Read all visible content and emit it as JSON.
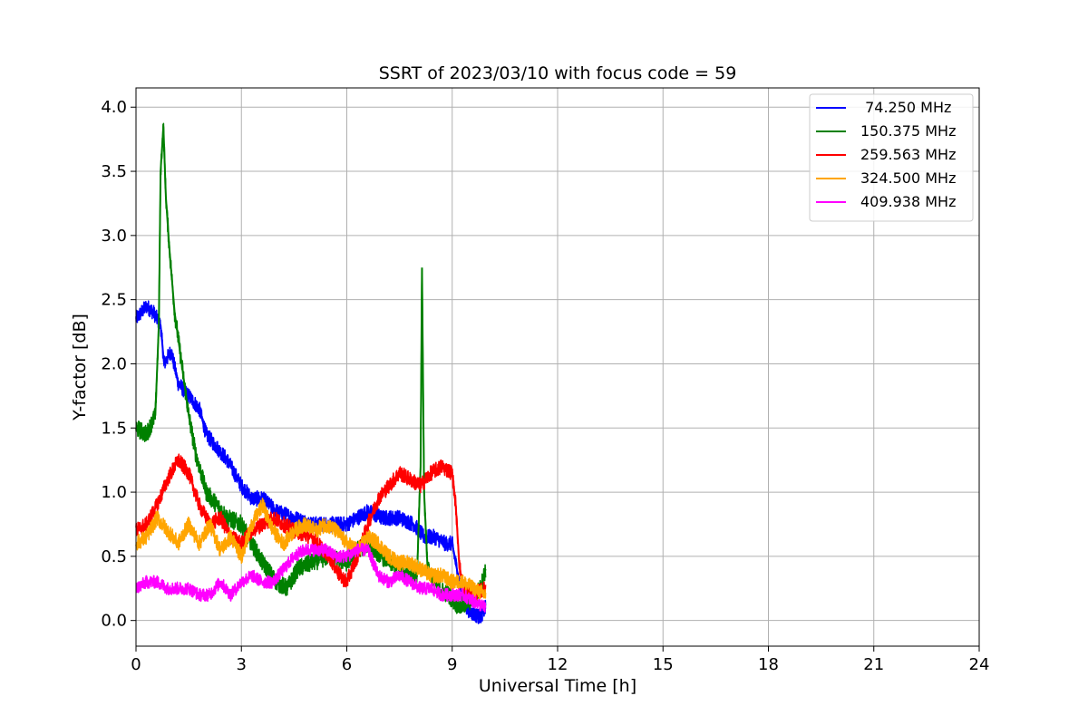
{
  "chart_data": {
    "type": "line",
    "title": "SSRT of 2023/03/10 with focus code = 59",
    "xlabel": "Universal Time [h]",
    "ylabel": "Y-factor [dB]",
    "xlim": [
      0,
      24
    ],
    "ylim": [
      -0.2,
      4.15
    ],
    "xticks": [
      "0",
      "3",
      "6",
      "9",
      "12",
      "15",
      "18",
      "21",
      "24"
    ],
    "yticks": [
      "0.0",
      "0.5",
      "1.0",
      "1.5",
      "2.0",
      "2.5",
      "3.0",
      "3.5",
      "4.0"
    ],
    "grid": true,
    "legend_position": "top-right",
    "series": [
      {
        "name": " 74.250 MHz",
        "color": "#0000ff",
        "noise": 0.06,
        "x": [
          0,
          0.3,
          0.5,
          0.7,
          0.8,
          1.0,
          1.2,
          1.5,
          1.8,
          2.0,
          2.3,
          2.6,
          3.0,
          3.3,
          3.6,
          4.0,
          4.5,
          5.0,
          5.5,
          6.0,
          6.3,
          6.6,
          7.0,
          7.5,
          7.9,
          8.2,
          8.5,
          8.8,
          9.0,
          9.2,
          9.4,
          9.6,
          9.8,
          9.95
        ],
        "y": [
          2.35,
          2.45,
          2.4,
          2.3,
          2.0,
          2.1,
          1.85,
          1.75,
          1.65,
          1.45,
          1.35,
          1.25,
          1.05,
          0.95,
          0.95,
          0.85,
          0.8,
          0.75,
          0.75,
          0.75,
          0.8,
          0.85,
          0.8,
          0.8,
          0.75,
          0.65,
          0.65,
          0.6,
          0.6,
          0.3,
          0.1,
          0.05,
          0.03,
          0.1
        ]
      },
      {
        "name": "150.375 MHz",
        "color": "#008000",
        "noise": 0.07,
        "x": [
          0,
          0.3,
          0.55,
          0.65,
          0.7,
          0.78,
          0.85,
          0.95,
          1.1,
          1.3,
          1.5,
          1.7,
          2.0,
          2.3,
          2.6,
          3.0,
          3.3,
          3.6,
          4.0,
          4.3,
          4.6,
          5.0,
          5.5,
          6.0,
          6.3,
          6.6,
          7.0,
          7.5,
          8.0,
          8.1,
          8.14,
          8.2,
          8.3,
          8.6,
          8.9,
          9.2,
          9.5,
          9.8,
          9.95
        ],
        "y": [
          1.5,
          1.45,
          1.6,
          2.3,
          3.5,
          3.85,
          3.3,
          2.9,
          2.4,
          2.0,
          1.6,
          1.3,
          1.0,
          0.9,
          0.8,
          0.75,
          0.6,
          0.45,
          0.3,
          0.25,
          0.4,
          0.45,
          0.5,
          0.45,
          0.55,
          0.6,
          0.5,
          0.4,
          0.35,
          1.2,
          2.75,
          1.0,
          0.4,
          0.25,
          0.2,
          0.1,
          0.15,
          0.25,
          0.4
        ]
      },
      {
        "name": "259.563 MHz",
        "color": "#ff0000",
        "noise": 0.06,
        "x": [
          0,
          0.3,
          0.6,
          0.9,
          1.2,
          1.5,
          1.8,
          2.1,
          2.4,
          2.7,
          3.0,
          3.3,
          3.6,
          3.9,
          4.2,
          4.5,
          5.0,
          5.5,
          5.8,
          6.0,
          6.3,
          6.6,
          6.9,
          7.2,
          7.5,
          7.8,
          8.1,
          8.4,
          8.7,
          9.0,
          9.1,
          9.2,
          9.3,
          9.6,
          9.95
        ],
        "y": [
          0.7,
          0.75,
          0.9,
          1.1,
          1.25,
          1.15,
          0.9,
          0.75,
          0.8,
          0.65,
          0.6,
          0.7,
          0.75,
          0.8,
          0.75,
          0.7,
          0.65,
          0.5,
          0.35,
          0.3,
          0.5,
          0.75,
          0.95,
          1.05,
          1.15,
          1.1,
          1.05,
          1.15,
          1.2,
          1.15,
          0.9,
          0.45,
          0.25,
          0.2,
          0.25
        ]
      },
      {
        "name": "324.500 MHz",
        "color": "#ffa500",
        "noise": 0.06,
        "x": [
          0,
          0.3,
          0.6,
          0.9,
          1.2,
          1.5,
          1.8,
          2.1,
          2.4,
          2.7,
          3.0,
          3.3,
          3.6,
          3.9,
          4.2,
          4.5,
          4.8,
          5.1,
          5.4,
          5.7,
          6.0,
          6.3,
          6.6,
          6.9,
          7.2,
          7.5,
          7.8,
          8.1,
          8.4,
          8.7,
          9.0,
          9.3,
          9.6,
          9.95
        ],
        "y": [
          0.6,
          0.65,
          0.8,
          0.7,
          0.6,
          0.75,
          0.6,
          0.75,
          0.55,
          0.65,
          0.5,
          0.75,
          0.9,
          0.7,
          0.6,
          0.7,
          0.75,
          0.7,
          0.75,
          0.7,
          0.6,
          0.55,
          0.65,
          0.6,
          0.5,
          0.45,
          0.45,
          0.4,
          0.35,
          0.35,
          0.3,
          0.3,
          0.25,
          0.2
        ]
      },
      {
        "name": "409.938 MHz",
        "color": "#ff00ff",
        "noise": 0.05,
        "x": [
          0,
          0.3,
          0.6,
          0.9,
          1.2,
          1.5,
          1.8,
          2.1,
          2.4,
          2.7,
          3.0,
          3.3,
          3.6,
          3.9,
          4.2,
          4.5,
          4.8,
          5.1,
          5.4,
          5.7,
          6.0,
          6.3,
          6.6,
          6.9,
          7.2,
          7.5,
          7.8,
          8.1,
          8.4,
          8.7,
          9.0,
          9.3,
          9.6,
          9.95
        ],
        "y": [
          0.25,
          0.3,
          0.3,
          0.25,
          0.25,
          0.25,
          0.2,
          0.2,
          0.3,
          0.2,
          0.3,
          0.35,
          0.3,
          0.3,
          0.4,
          0.5,
          0.55,
          0.55,
          0.55,
          0.5,
          0.5,
          0.55,
          0.55,
          0.35,
          0.3,
          0.35,
          0.3,
          0.25,
          0.25,
          0.2,
          0.2,
          0.2,
          0.15,
          0.1
        ]
      }
    ]
  }
}
